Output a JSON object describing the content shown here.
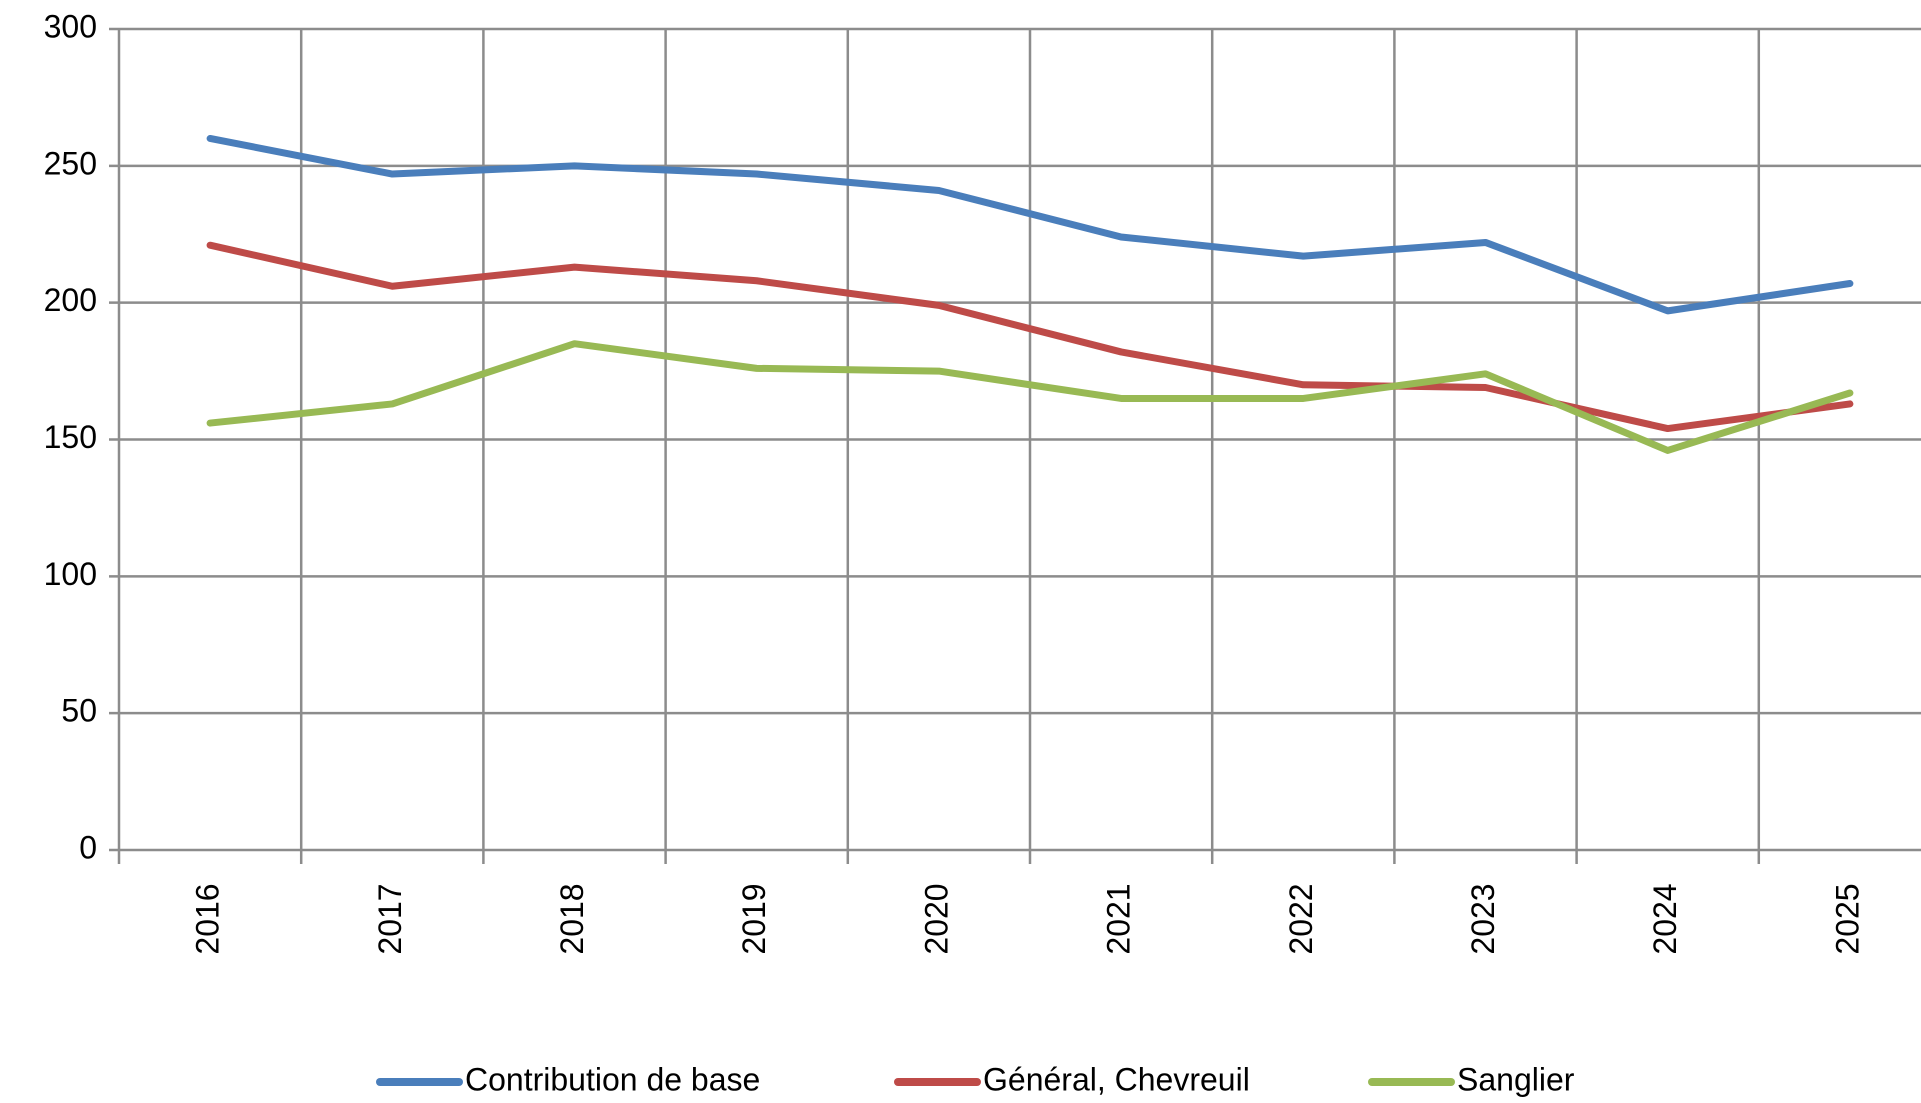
{
  "chart_data": {
    "type": "line",
    "categories": [
      "2016",
      "2017",
      "2018",
      "2019",
      "2020",
      "2021",
      "2022",
      "2023",
      "2024",
      "2025"
    ],
    "series": [
      {
        "name": "Contribution de base",
        "color": "#4a7ebb",
        "values": [
          260,
          247,
          250,
          247,
          241,
          224,
          217,
          222,
          197,
          207
        ]
      },
      {
        "name": "Général, Chevreuil",
        "color": "#be4b48",
        "values": [
          221,
          206,
          213,
          208,
          199,
          182,
          170,
          169,
          154,
          163
        ]
      },
      {
        "name": "Sanglier",
        "color": "#98b954",
        "values": [
          156,
          163,
          185,
          176,
          175,
          165,
          165,
          174,
          146,
          167
        ]
      }
    ],
    "ylim": [
      0,
      300
    ],
    "yticks": [
      0,
      50,
      100,
      150,
      200,
      250,
      300
    ],
    "grid": true,
    "legend": "bottom"
  }
}
